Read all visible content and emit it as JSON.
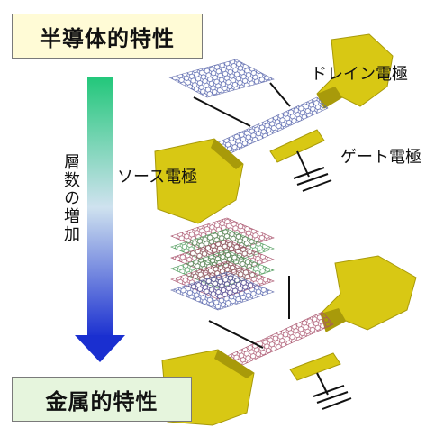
{
  "labels": {
    "semiconductor": "半導体的特性",
    "metallic": "金属的特性",
    "layer_increase": "層数の増加",
    "drain_electrode": "ドレイン電極",
    "gate_electrode": "ゲート電極",
    "source_electrode": "ソース電極"
  },
  "colors": {
    "electrode": "#d8c814",
    "electrode_dark": "#a89a0a",
    "arrow_top": "#22c77a",
    "arrow_mid": "#cfe2ef",
    "arrow_bottom": "#1a2fd0",
    "semiconductor_box": "#fffbd6",
    "metallic_box": "#e6f5dd"
  },
  "icons": [
    "ground-symbol",
    "graphene-sheet",
    "graphene-stack"
  ]
}
